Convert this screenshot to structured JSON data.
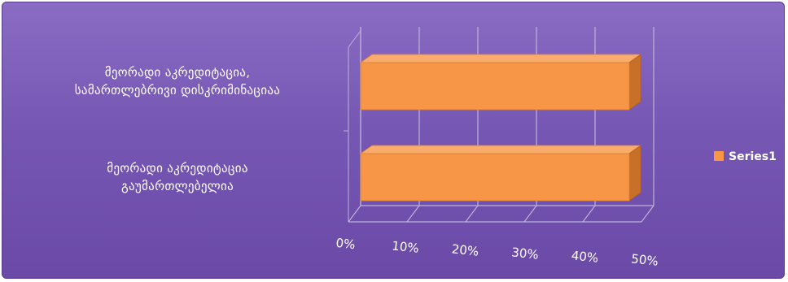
{
  "chart_data": {
    "type": "bar",
    "orientation": "horizontal",
    "three_d": true,
    "categories": [
      [
        "მეორადი აკრედიტაცია,",
        "სამართლებრივი დისკრიმინაციაა"
      ],
      [
        "მეორადი აკრედიტაცია",
        "გაუმართლებელია"
      ]
    ],
    "series": [
      {
        "name": "Series1",
        "values": [
          0.5,
          0.5
        ],
        "color": "#f79646"
      }
    ],
    "x_ticks": [
      "0%",
      "10%",
      "20%",
      "30%",
      "40%",
      "50%"
    ],
    "xlim": [
      0,
      0.5
    ],
    "grid": true,
    "legend": "right",
    "colors": {
      "background": "#7a5bb8",
      "bar_front": "#f79646",
      "bar_top": "#f9ad6d",
      "bar_side": "#c8702a",
      "gridline": "#bdb3d6"
    }
  }
}
